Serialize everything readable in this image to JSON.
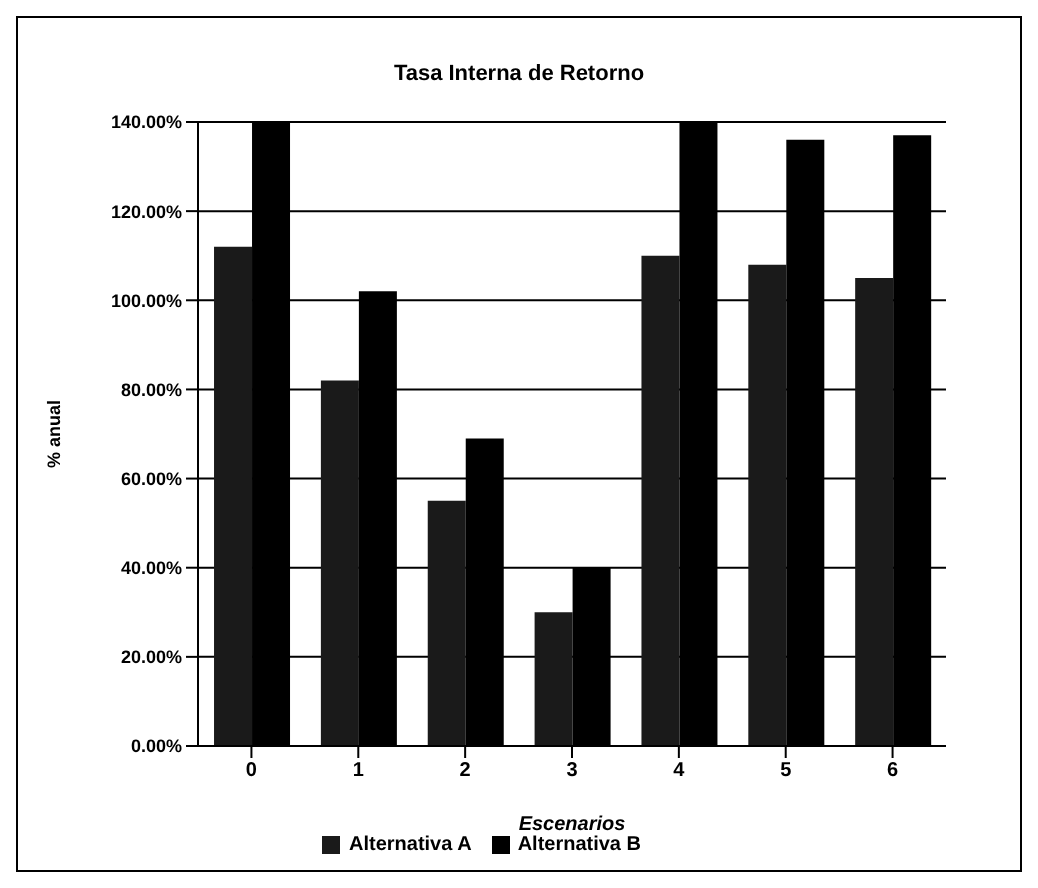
{
  "chart_data": {
    "type": "bar",
    "title": "Tasa Interna de Retorno",
    "xlabel": "Escenarios",
    "ylabel": "% anual",
    "categories": [
      "0",
      "1",
      "2",
      "3",
      "4",
      "5",
      "6"
    ],
    "series": [
      {
        "name": "Alternativa A",
        "color": "#1a1a1a",
        "values": [
          112,
          82,
          55,
          30,
          110,
          108,
          105
        ]
      },
      {
        "name": "Alternativa B",
        "color": "#000000",
        "values": [
          140,
          102,
          69,
          40,
          140,
          136,
          137
        ]
      }
    ],
    "ylim": [
      0,
      140
    ],
    "yticks": [
      {
        "value": 0,
        "label": "0.00%"
      },
      {
        "value": 20,
        "label": "20.00%"
      },
      {
        "value": 40,
        "label": "40.00%"
      },
      {
        "value": 60,
        "label": "60.00%"
      },
      {
        "value": 80,
        "label": "80.00%"
      },
      {
        "value": 100,
        "label": "100.00%"
      },
      {
        "value": 120,
        "label": "120.00%"
      },
      {
        "value": 140,
        "label": "140.00%"
      }
    ],
    "grid": "y",
    "legend": "bottom"
  }
}
